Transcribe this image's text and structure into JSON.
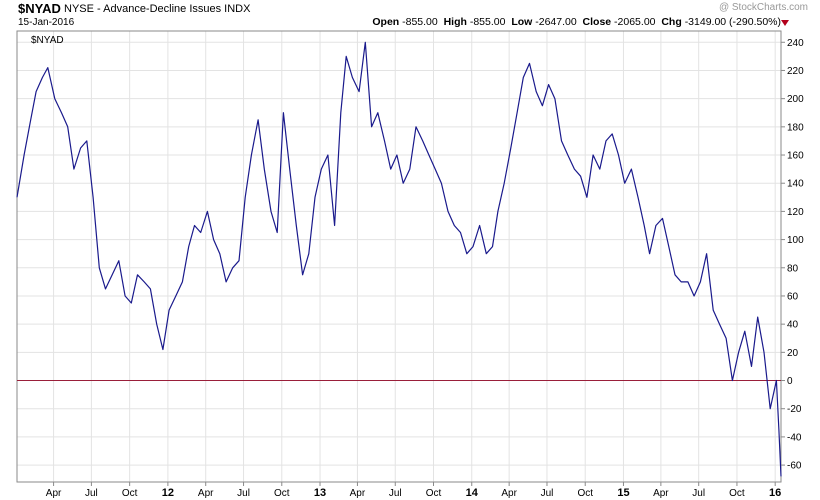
{
  "header": {
    "symbol": "$NYAD",
    "description": "NYSE - Advance-Decline Issues  INDX",
    "date": "15-Jan-2016",
    "open_label": "Open",
    "open": "-855.00",
    "high_label": "High",
    "high": "-855.00",
    "low_label": "Low",
    "low": "-2647.00",
    "close_label": "Close",
    "close": "-2065.00",
    "chg_label": "Chg",
    "chg": "-3149.00 (-290.50%)",
    "watermark": "@ StockCharts.com"
  },
  "colors": {
    "line": "#1a1a8c",
    "zero_line": "#9a1f3a",
    "grid": "#e3e3e3",
    "frame": "#8a8a8a"
  },
  "chart_data": {
    "type": "line",
    "legend": "$NYAD",
    "ylim": [
      -72,
      248
    ],
    "yticks": [
      240,
      220,
      200,
      180,
      160,
      140,
      120,
      100,
      80,
      60,
      40,
      20,
      0,
      -20,
      -40,
      -60
    ],
    "xticks": [
      "Apr",
      "Jul",
      "Oct",
      "12",
      "Apr",
      "Jul",
      "Oct",
      "13",
      "Apr",
      "Jul",
      "Oct",
      "14",
      "Apr",
      "Jul",
      "Oct",
      "15",
      "Apr",
      "Jul",
      "Oct",
      "16"
    ],
    "reference_line": 0,
    "x": [
      "2011-01-03",
      "2011-01-20",
      "2011-02-05",
      "2011-02-18",
      "2011-03-05",
      "2011-03-18",
      "2011-04-04",
      "2011-04-20",
      "2011-05-05",
      "2011-05-20",
      "2011-06-05",
      "2011-06-20",
      "2011-07-05",
      "2011-07-20",
      "2011-08-04",
      "2011-08-20",
      "2011-09-05",
      "2011-09-20",
      "2011-10-05",
      "2011-10-20",
      "2011-11-05",
      "2011-11-20",
      "2011-12-05",
      "2011-12-20",
      "2012-01-04",
      "2012-01-20",
      "2012-02-05",
      "2012-02-20",
      "2012-03-05",
      "2012-03-20",
      "2012-04-05",
      "2012-04-20",
      "2012-05-05",
      "2012-05-20",
      "2012-06-05",
      "2012-06-20",
      "2012-07-05",
      "2012-07-20",
      "2012-08-05",
      "2012-08-20",
      "2012-09-05",
      "2012-09-20",
      "2012-10-05",
      "2012-10-20",
      "2012-11-05",
      "2012-11-20",
      "2012-12-05",
      "2012-12-20",
      "2013-01-04",
      "2013-01-20",
      "2013-02-05",
      "2013-02-20",
      "2013-03-05",
      "2013-03-20",
      "2013-04-05",
      "2013-04-20",
      "2013-05-05",
      "2013-05-20",
      "2013-06-05",
      "2013-06-20",
      "2013-07-05",
      "2013-07-20",
      "2013-08-05",
      "2013-08-20",
      "2013-09-05",
      "2013-09-20",
      "2013-10-05",
      "2013-10-20",
      "2013-11-05",
      "2013-11-20",
      "2013-12-05",
      "2013-12-20",
      "2014-01-04",
      "2014-01-20",
      "2014-02-05",
      "2014-02-20",
      "2014-03-05",
      "2014-03-20",
      "2014-04-05",
      "2014-04-20",
      "2014-05-05",
      "2014-05-20",
      "2014-06-05",
      "2014-06-20",
      "2014-07-05",
      "2014-07-20",
      "2014-08-05",
      "2014-08-20",
      "2014-09-05",
      "2014-09-20",
      "2014-10-05",
      "2014-10-20",
      "2014-11-05",
      "2014-11-20",
      "2014-12-05",
      "2014-12-20",
      "2015-01-04",
      "2015-01-20",
      "2015-02-05",
      "2015-02-20",
      "2015-03-05",
      "2015-03-20",
      "2015-04-05",
      "2015-04-20",
      "2015-05-05",
      "2015-05-20",
      "2015-06-05",
      "2015-06-20",
      "2015-07-05",
      "2015-07-20",
      "2015-08-05",
      "2015-08-20",
      "2015-09-05",
      "2015-09-20",
      "2015-10-05",
      "2015-10-20",
      "2015-11-05",
      "2015-11-20",
      "2015-12-05",
      "2015-12-20",
      "2016-01-04",
      "2016-01-10",
      "2016-01-15"
    ],
    "y": [
      130,
      160,
      185,
      205,
      215,
      222,
      200,
      190,
      180,
      150,
      165,
      170,
      130,
      80,
      65,
      75,
      85,
      60,
      55,
      75,
      70,
      65,
      40,
      22,
      50,
      60,
      70,
      95,
      110,
      105,
      120,
      100,
      90,
      70,
      80,
      85,
      130,
      160,
      185,
      150,
      120,
      105,
      190,
      150,
      110,
      75,
      90,
      130,
      150,
      160,
      110,
      190,
      230,
      215,
      205,
      240,
      180,
      190,
      170,
      150,
      160,
      140,
      150,
      180,
      170,
      160,
      150,
      140,
      120,
      110,
      105,
      90,
      95,
      110,
      90,
      95,
      120,
      140,
      165,
      190,
      215,
      225,
      205,
      195,
      210,
      200,
      170,
      160,
      150,
      145,
      130,
      160,
      150,
      170,
      175,
      160,
      140,
      150,
      130,
      110,
      90,
      110,
      115,
      95,
      75,
      70,
      70,
      60,
      70,
      90,
      50,
      40,
      30,
      0,
      20,
      35,
      10,
      45,
      20,
      -20,
      0,
      -35,
      -68
    ]
  }
}
